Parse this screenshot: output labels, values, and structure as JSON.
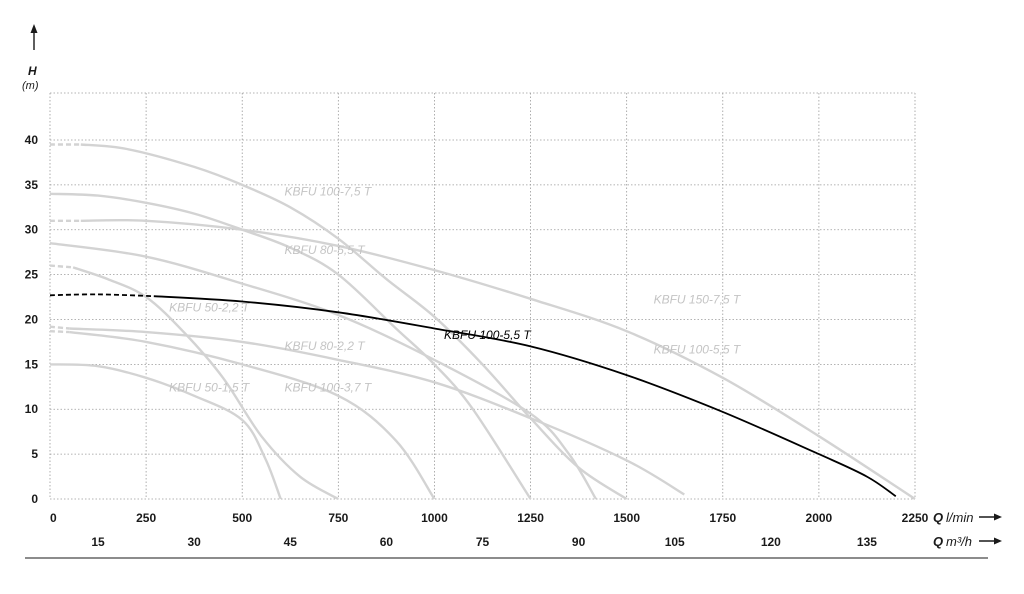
{
  "chart_data": {
    "type": "line",
    "ylabel": "H",
    "yunit": "(m)",
    "xlabel_primary": "Q",
    "xunit_primary": "l/min",
    "xlabel_secondary": "Q",
    "xunit_secondary": "m³/h",
    "xlim": [
      0,
      2250
    ],
    "ylim": [
      0,
      45
    ],
    "grid": true,
    "x_ticks": [
      "0",
      "250",
      "500",
      "750",
      "1000",
      "1250",
      "1500",
      "1750",
      "2000",
      "2250"
    ],
    "x2_ticks": [
      "15",
      "30",
      "45",
      "60",
      "75",
      "90",
      "105",
      "120",
      "135"
    ],
    "y_ticks": [
      "0",
      "5",
      "10",
      "15",
      "20",
      "25",
      "30",
      "35",
      "40"
    ],
    "colors": {
      "highlight": "#000000",
      "muted": "#d3d3d3",
      "muted_text": "#c4c4c4"
    },
    "series": [
      {
        "name": "KBFU 50-1,5 T",
        "highlight": false,
        "dash_until": 0,
        "points": [
          [
            0,
            15
          ],
          [
            125,
            14.8
          ],
          [
            250,
            13.5
          ],
          [
            375,
            11.5
          ],
          [
            500,
            8.8
          ],
          [
            560,
            4.5
          ],
          [
            600,
            0
          ]
        ]
      },
      {
        "name": "KBFU 50-2,2 T",
        "highlight": false,
        "dash_until": 60,
        "points": [
          [
            0,
            26
          ],
          [
            60,
            25.8
          ],
          [
            150,
            24.5
          ],
          [
            250,
            22.5
          ],
          [
            350,
            18.5
          ],
          [
            450,
            13.5
          ],
          [
            550,
            7
          ],
          [
            650,
            2.5
          ],
          [
            750,
            0
          ]
        ]
      },
      {
        "name": "KBFU 80-2,2 T",
        "highlight": false,
        "dash_until": 50,
        "points": [
          [
            0,
            18.7
          ],
          [
            50,
            18.6
          ],
          [
            250,
            17.5
          ],
          [
            500,
            15
          ],
          [
            750,
            11.5
          ],
          [
            900,
            6.5
          ],
          [
            1000,
            0
          ]
        ]
      },
      {
        "name": "KBFU 100-3,7 T",
        "highlight": false,
        "dash_until": 50,
        "points": [
          [
            0,
            19.2
          ],
          [
            50,
            19
          ],
          [
            250,
            18.6
          ],
          [
            500,
            17.5
          ],
          [
            750,
            15.5
          ],
          [
            1000,
            13
          ],
          [
            1250,
            9
          ],
          [
            1500,
            4.3
          ],
          [
            1650,
            0.5
          ]
        ]
      },
      {
        "name": "KBFU 80-5,5 T",
        "highlight": false,
        "dash_until": 0,
        "points": [
          [
            0,
            34
          ],
          [
            125,
            33.8
          ],
          [
            250,
            33
          ],
          [
            375,
            31.8
          ],
          [
            500,
            30
          ],
          [
            625,
            28
          ],
          [
            750,
            25
          ],
          [
            900,
            19
          ],
          [
            1000,
            15
          ],
          [
            1100,
            10
          ],
          [
            1250,
            0
          ]
        ]
      },
      {
        "name": "KBFU 100-7,5 T",
        "highlight": false,
        "dash_until": 80,
        "points": [
          [
            0,
            39.5
          ],
          [
            80,
            39.5
          ],
          [
            200,
            39
          ],
          [
            375,
            37
          ],
          [
            500,
            35
          ],
          [
            625,
            32.5
          ],
          [
            750,
            29
          ],
          [
            875,
            24.5
          ],
          [
            1000,
            20.3
          ],
          [
            1125,
            15
          ],
          [
            1250,
            9
          ],
          [
            1375,
            3.5
          ],
          [
            1500,
            0
          ]
        ]
      },
      {
        "name": "KBFU 150-7,5 T",
        "highlight": false,
        "dash_until": 80,
        "points": [
          [
            0,
            31
          ],
          [
            80,
            31
          ],
          [
            250,
            31
          ],
          [
            500,
            30
          ],
          [
            750,
            28.2
          ],
          [
            1000,
            25.5
          ],
          [
            1250,
            22.3
          ],
          [
            1500,
            18.7
          ],
          [
            1750,
            13.5
          ],
          [
            2000,
            7
          ],
          [
            2250,
            0
          ]
        ]
      },
      {
        "name": "KBFU 100-5,5 T",
        "highlight": false,
        "dash_until": 0,
        "points": [
          [
            0,
            28.5
          ],
          [
            250,
            27
          ],
          [
            500,
            24
          ],
          [
            750,
            20.5
          ],
          [
            1000,
            15.5
          ],
          [
            1250,
            9.5
          ],
          [
            1350,
            5
          ],
          [
            1420,
            0
          ]
        ]
      },
      {
        "name": "KBFU 100-5,5 T",
        "highlight": true,
        "dash_until": 270,
        "points": [
          [
            0,
            22.7
          ],
          [
            125,
            22.8
          ],
          [
            270,
            22.6
          ],
          [
            500,
            22
          ],
          [
            750,
            20.8
          ],
          [
            1000,
            19
          ],
          [
            1250,
            17
          ],
          [
            1500,
            13.8
          ],
          [
            1750,
            9.7
          ],
          [
            2000,
            5
          ],
          [
            2125,
            2.5
          ],
          [
            2200,
            0.3
          ]
        ]
      }
    ],
    "annotations": [
      {
        "text": "KBFU 100-7,5 T",
        "x": 610,
        "y": 33.8,
        "highlight": false
      },
      {
        "text": "KBFU 80-5,5 T",
        "x": 610,
        "y": 27.3,
        "highlight": false
      },
      {
        "text": "KBFU 150-7,5 T",
        "x": 1570,
        "y": 21.8,
        "highlight": false
      },
      {
        "text": "KBFU 50-2,2 T",
        "x": 310,
        "y": 20.9,
        "highlight": false
      },
      {
        "text": "KBFU 100-5,5 T",
        "x": 1025,
        "y": 17.8,
        "highlight": true
      },
      {
        "text": "KBFU 100-5,5 T",
        "x": 1570,
        "y": 16.2,
        "highlight": false
      },
      {
        "text": "KBFU 80-2,2 T",
        "x": 610,
        "y": 16.6,
        "highlight": false
      },
      {
        "text": "KBFU 50-1,5 T",
        "x": 310,
        "y": 12.0,
        "highlight": false
      },
      {
        "text": "KBFU 100-3,7 T",
        "x": 610,
        "y": 12.0,
        "highlight": false
      }
    ]
  }
}
